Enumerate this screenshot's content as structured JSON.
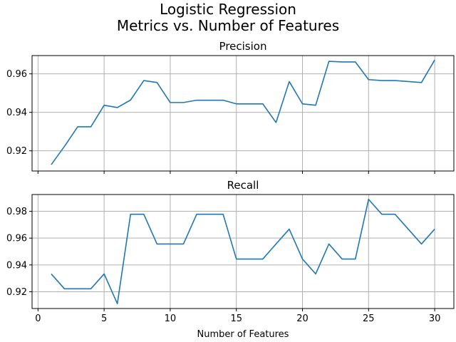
{
  "title_line1": "Logistic Regression",
  "title_line2": "Metrics vs. Number of Features",
  "chart_data": [
    {
      "type": "line",
      "title": "Precision",
      "xlabel": "",
      "ylabel": "",
      "xlim": [
        -0.45,
        31.45
      ],
      "ylim": [
        0.9095,
        0.9695
      ],
      "xticks": [
        0,
        5,
        10,
        15,
        20,
        25,
        30
      ],
      "yticks": [
        0.92,
        0.94,
        0.96
      ],
      "ytick_labels": [
        "0.92",
        "0.94",
        "0.96"
      ],
      "grid": true,
      "color": "#1f77b4",
      "x": [
        1,
        2,
        3,
        4,
        5,
        6,
        7,
        8,
        9,
        10,
        11,
        12,
        13,
        14,
        15,
        16,
        17,
        18,
        19,
        20,
        21,
        22,
        23,
        24,
        25,
        26,
        27,
        28,
        29,
        30
      ],
      "y": [
        0.9128,
        0.9223,
        0.9325,
        0.9325,
        0.9437,
        0.9425,
        0.9464,
        0.9565,
        0.9555,
        0.9451,
        0.9451,
        0.9463,
        0.9463,
        0.9463,
        0.9444,
        0.9444,
        0.9444,
        0.9347,
        0.956,
        0.9444,
        0.9437,
        0.9665,
        0.9662,
        0.9662,
        0.957,
        0.9565,
        0.9565,
        0.956,
        0.9555,
        0.9672
      ]
    },
    {
      "type": "line",
      "title": "Recall",
      "xlabel": "Number of Features",
      "ylabel": "",
      "xlim": [
        -0.45,
        31.45
      ],
      "ylim": [
        0.9075,
        0.9925
      ],
      "xticks": [
        0,
        5,
        10,
        15,
        20,
        25,
        30
      ],
      "xtick_labels": [
        "0",
        "5",
        "10",
        "15",
        "20",
        "25",
        "30"
      ],
      "yticks": [
        0.92,
        0.94,
        0.96,
        0.98
      ],
      "ytick_labels": [
        "0.92",
        "0.94",
        "0.96",
        "0.98"
      ],
      "grid": true,
      "color": "#1f77b4",
      "x": [
        1,
        2,
        3,
        4,
        5,
        6,
        7,
        8,
        9,
        10,
        11,
        12,
        13,
        14,
        15,
        16,
        17,
        18,
        19,
        20,
        21,
        22,
        23,
        24,
        25,
        26,
        27,
        28,
        29,
        30
      ],
      "y": [
        0.9333,
        0.9222,
        0.9222,
        0.9222,
        0.9333,
        0.9111,
        0.9778,
        0.9778,
        0.9556,
        0.9556,
        0.9556,
        0.9778,
        0.9778,
        0.9778,
        0.9444,
        0.9444,
        0.9444,
        0.9556,
        0.9667,
        0.9444,
        0.9333,
        0.9556,
        0.9444,
        0.9444,
        0.9889,
        0.9778,
        0.9778,
        0.9667,
        0.9556,
        0.9667
      ]
    }
  ]
}
